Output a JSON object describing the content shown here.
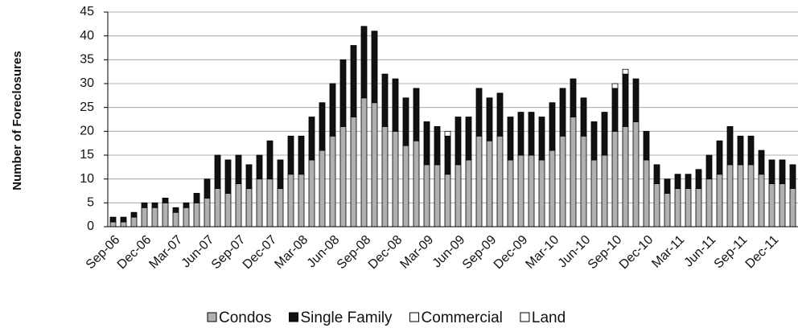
{
  "chart_data": {
    "type": "stacked_bar",
    "y_label": "Number of Foreclosures",
    "categories": [
      "Sep-06",
      null,
      null,
      "Dec-06",
      null,
      null,
      "Mar-07",
      null,
      null,
      "Jun-07",
      null,
      null,
      "Sep-07",
      null,
      null,
      "Dec-07",
      null,
      null,
      "Mar-08",
      null,
      null,
      "Jun-08",
      null,
      null,
      "Sep-08",
      null,
      null,
      "Dec-08",
      null,
      null,
      "Mar-09",
      null,
      null,
      "Jun-09",
      null,
      null,
      "Sep-09",
      null,
      null,
      "Dec-09",
      null,
      null,
      "Mar-10",
      null,
      null,
      "Jun-10",
      null,
      null,
      "Sep-10",
      null,
      null,
      "Dec-10",
      null,
      null,
      "Mar-11",
      null,
      null,
      "Jun-11",
      null,
      null,
      "Sep-11",
      null,
      null,
      "Dec-11",
      null,
      null
    ],
    "series": [
      {
        "name": "Condos",
        "color": "#b0b0b0",
        "values": [
          1,
          1,
          2,
          4,
          4,
          5,
          3,
          4,
          5,
          6,
          8,
          7,
          9,
          8,
          10,
          10,
          8,
          11,
          11,
          14,
          16,
          19,
          21,
          23,
          27,
          26,
          21,
          20,
          17,
          18,
          13,
          13,
          11,
          13,
          14,
          19,
          18,
          19,
          14,
          15,
          15,
          14,
          16,
          19,
          23,
          19,
          14,
          15,
          20,
          21,
          22,
          14,
          9,
          7,
          8,
          8,
          8,
          10,
          11,
          13,
          13,
          13,
          11,
          9,
          9,
          8
        ]
      },
      {
        "name": "Single Family",
        "color": "#111111",
        "values": [
          1,
          1,
          1,
          1,
          1,
          1,
          1,
          1,
          2,
          4,
          7,
          7,
          6,
          5,
          5,
          8,
          6,
          8,
          8,
          9,
          10,
          11,
          14,
          15,
          15,
          15,
          11,
          11,
          10,
          11,
          9,
          8,
          8,
          10,
          9,
          10,
          9,
          9,
          9,
          9,
          9,
          9,
          10,
          10,
          8,
          8,
          8,
          9,
          9,
          11,
          9,
          6,
          4,
          3,
          3,
          3,
          4,
          5,
          7,
          8,
          6,
          6,
          5,
          5,
          5,
          5
        ]
      },
      {
        "name": "Commercial",
        "color": "#ffffff",
        "values": [
          0,
          0,
          0,
          0,
          0,
          0,
          0,
          0,
          0,
          0,
          0,
          0,
          0,
          0,
          0,
          0,
          0,
          0,
          0,
          0,
          0,
          0,
          0,
          0,
          0,
          0,
          0,
          0,
          0,
          0,
          0,
          0,
          1,
          0,
          0,
          0,
          0,
          0,
          0,
          0,
          0,
          0,
          0,
          0,
          0,
          0,
          0,
          0,
          1,
          1,
          0,
          0,
          0,
          0,
          0,
          0,
          0,
          0,
          0,
          0,
          0,
          0,
          0,
          0,
          0,
          0
        ]
      },
      {
        "name": "Land",
        "color": "#ffffff",
        "values": [
          0,
          0,
          0,
          0,
          0,
          0,
          0,
          0,
          0,
          0,
          0,
          0,
          0,
          0,
          0,
          0,
          0,
          0,
          0,
          0,
          0,
          0,
          0,
          0,
          0,
          0,
          0,
          0,
          0,
          0,
          0,
          0,
          0,
          0,
          0,
          0,
          0,
          0,
          0,
          0,
          0,
          0,
          0,
          0,
          0,
          0,
          0,
          0,
          0,
          0,
          0,
          0,
          0,
          0,
          0,
          0,
          0,
          0,
          0,
          0,
          0,
          0,
          0,
          0,
          0,
          0
        ]
      }
    ],
    "ylim": [
      0,
      45
    ],
    "yticks": [
      0,
      5,
      10,
      15,
      20,
      25,
      30,
      35,
      40,
      45
    ],
    "grid": true,
    "legend": "bottom"
  }
}
